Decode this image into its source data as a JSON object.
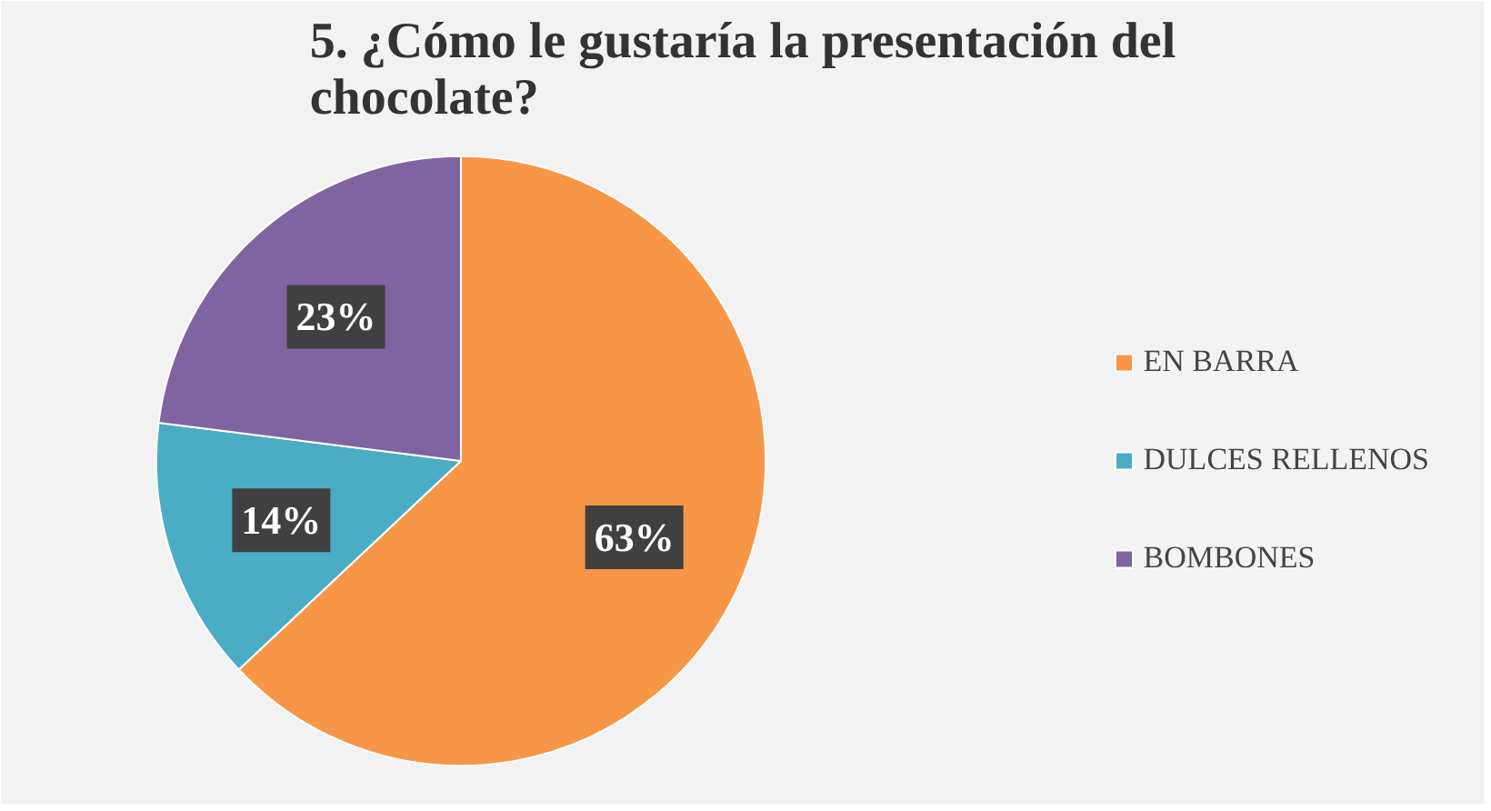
{
  "chart_data": {
    "type": "pie",
    "title": "5. ¿Cómo le gustaría la presentación del chocolate?",
    "categories": [
      "EN BARRA",
      "DULCES RELLENOS",
      "BOMBONES"
    ],
    "values": [
      63,
      14,
      23
    ],
    "colors": [
      "#f79646",
      "#4bacc6",
      "#8064a2"
    ],
    "value_labels": [
      "63%",
      "14%",
      "23%"
    ],
    "legend": "right"
  }
}
